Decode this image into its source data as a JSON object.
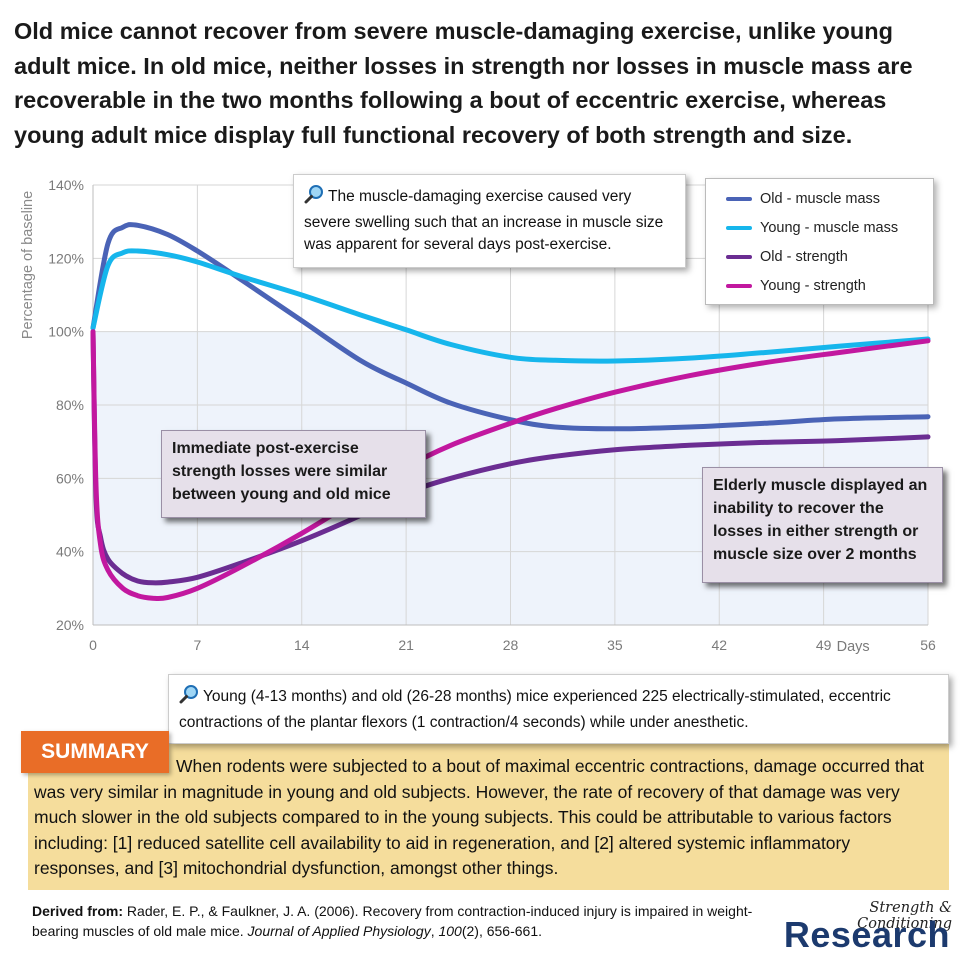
{
  "title": "Old mice cannot recover from severe muscle-damaging exercise, unlike young adult mice. In old mice, neither losses in strength nor losses in muscle mass are recoverable in the two months following a bout of eccentric exercise, whereas young adult mice display full functional recovery of both strength and size.",
  "chart_data": {
    "type": "line",
    "ylabel": "Percentage of baseline",
    "xlabel": "Days",
    "xlim": [
      0,
      56
    ],
    "ylim": [
      20,
      140
    ],
    "x_ticks": [
      "0",
      "7",
      "14",
      "21",
      "28",
      "35",
      "42",
      "49",
      "56"
    ],
    "y_ticks": [
      "20%",
      "40%",
      "60%",
      "80%",
      "100%",
      "120%",
      "140%"
    ],
    "baseline": 100,
    "series": [
      {
        "name": "Old - muscle mass",
        "color": "#4a63b6",
        "x": [
          0,
          1,
          2,
          3,
          5,
          7,
          10,
          14,
          18,
          21,
          24,
          28,
          31,
          35,
          40,
          45,
          50,
          56
        ],
        "y": [
          101,
          124,
          128.5,
          129,
          126.5,
          122,
          114,
          103,
          92,
          86,
          80.5,
          76,
          74,
          73.5,
          74,
          75,
          76.2,
          76.8
        ]
      },
      {
        "name": "Young - muscle mass",
        "color": "#16b6ec",
        "x": [
          0,
          1,
          2,
          3,
          5,
          7,
          10,
          14,
          18,
          21,
          24,
          28,
          31,
          35,
          40,
          45,
          50,
          56
        ],
        "y": [
          101,
          118,
          121.5,
          122,
          121,
          119,
          115,
          110,
          104.5,
          100.5,
          96.5,
          93,
          92.2,
          92,
          92.8,
          94.3,
          96,
          98
        ]
      },
      {
        "name": "Old - strength",
        "color": "#6b2d92",
        "x": [
          0,
          0.2,
          0.5,
          1,
          2,
          3,
          4,
          5,
          7,
          10,
          14,
          18,
          21,
          24,
          28,
          31,
          35,
          40,
          45,
          50,
          56
        ],
        "y": [
          100,
          55,
          44,
          38,
          34,
          32,
          31.5,
          31.7,
          33,
          37,
          43,
          50,
          56,
          60,
          64,
          66,
          67.8,
          69,
          69.8,
          70.3,
          71.3
        ]
      },
      {
        "name": "Young - strength",
        "color": "#c2189f",
        "x": [
          0,
          0.2,
          0.5,
          1,
          2,
          3,
          4,
          5,
          7,
          10,
          14,
          18,
          21,
          24,
          28,
          31,
          35,
          40,
          45,
          50,
          56
        ],
        "y": [
          100,
          58,
          42,
          35,
          30,
          28,
          27.3,
          27.5,
          30,
          36,
          45,
          55,
          63,
          69,
          75,
          79,
          83.5,
          88,
          91.5,
          94.3,
          97.5
        ]
      }
    ]
  },
  "legend": {
    "items": [
      {
        "label": "Old - muscle mass",
        "color": "#4a63b6"
      },
      {
        "label": "Young - muscle mass",
        "color": "#16b6ec"
      },
      {
        "label": "Old - strength",
        "color": "#6b2d92"
      },
      {
        "label": "Young - strength",
        "color": "#c2189f"
      }
    ]
  },
  "callouts": {
    "swelling": "The muscle-damaging exercise caused very severe swelling such that an increase in muscle size was apparent for several days post-exercise.",
    "method": "Young (4-13 months) and old (26-28 months) mice experienced 225 electrically-stimulated, eccentric contractions of the plantar flexors (1 contraction/4 seconds) while under anesthetic.",
    "icon": "magnifier-icon"
  },
  "annotations": {
    "immediate": "Immediate post-exercise strength losses were similar between young and old mice",
    "elderly": "Elderly muscle displayed an inability to recover the losses in either strength or muscle size over 2 months"
  },
  "summary": {
    "label": "SUMMARY",
    "text": "When rodents were subjected to a bout of maximal eccentric contractions, damage occurred that was very similar in magnitude in young and old subjects. However, the rate of recovery of that damage was very much slower in the old subjects compared to in the young subjects. This could be attributable to various factors including: [1] reduced satellite cell availability to aid in regeneration, and [2] altered systemic inflammatory responses, and [3] mitochondrial dysfunction, amongst other things."
  },
  "citation": {
    "label": "Derived from:",
    "authors": "Rader, E. P., & Faulkner, J. A. (2006). Recovery from contraction-induced injury is impaired in weight-bearing muscles of old male mice.",
    "journal": "Journal of Applied Physiology",
    "volume": "100",
    "issue_pages": "(2), 656-661."
  },
  "logo": {
    "line1": "Strength & Conditioning",
    "line2": "Research"
  }
}
